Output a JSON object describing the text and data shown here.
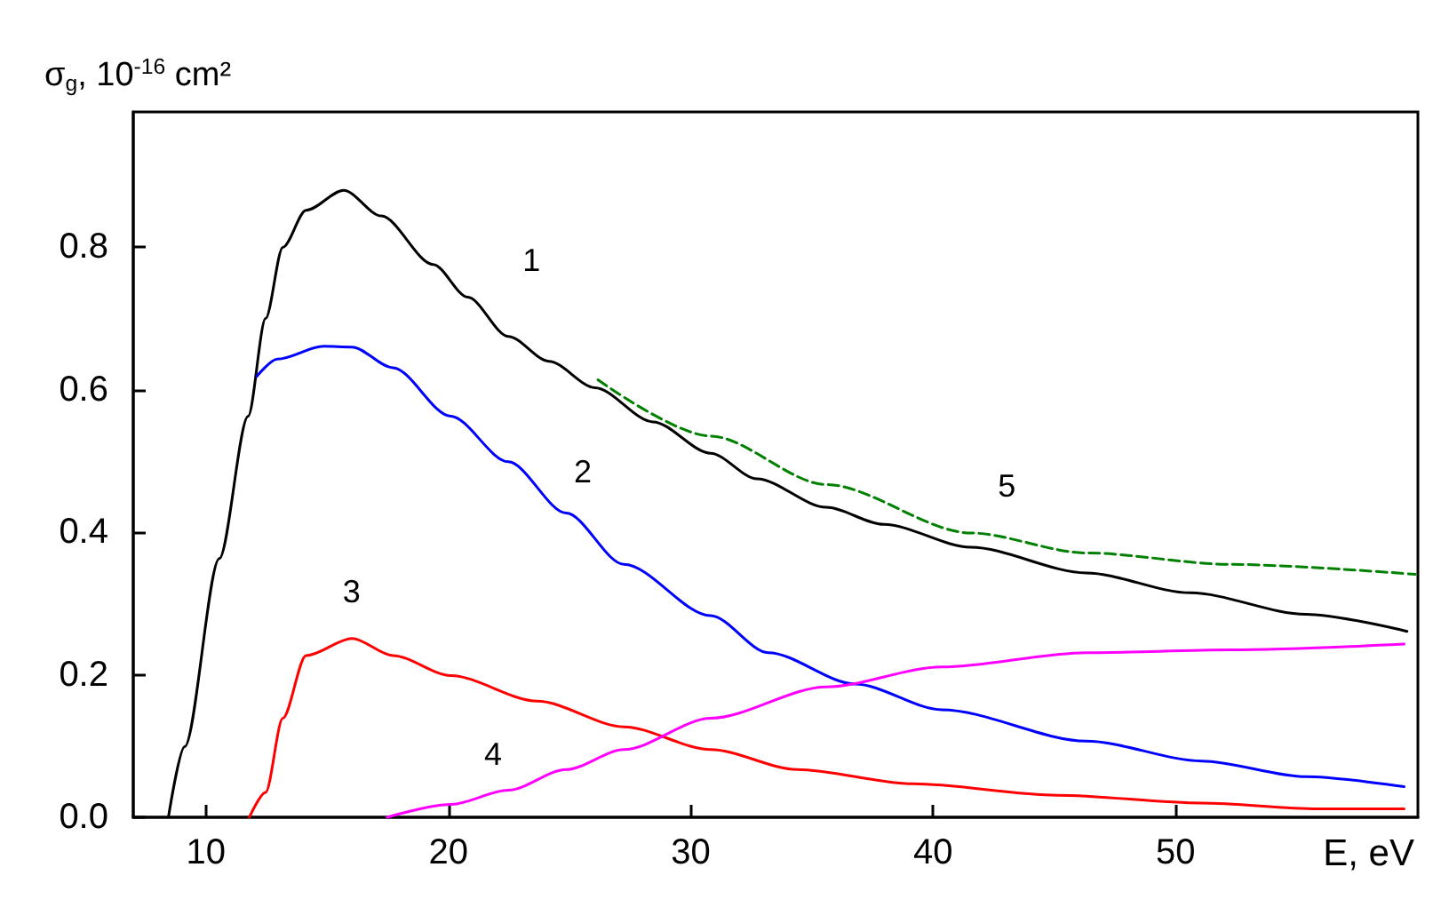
{
  "chart_data": {
    "type": "line",
    "xlabel": "E, eV",
    "ylabel": "σ$_{g}$, 10$^{-16}$ cm²",
    "xlim": [
      7,
      60
    ],
    "ylim": [
      0,
      0.99
    ],
    "xticks": [
      10,
      20,
      30,
      40,
      50
    ],
    "yticks": [
      {
        "value": 0,
        "label": "0.0"
      },
      0.2,
      0.4,
      0.6,
      0.8
    ],
    "grid": false,
    "legend": false,
    "marker": "none",
    "line_style": "solid",
    "series": [
      {
        "name": "1",
        "color": "#000000",
        "x": [
          8.45,
          9.12,
          10.55,
          11.74,
          12.46,
          13.17,
          14.13,
          15.68,
          17.23,
          19.37,
          20.8,
          22.47,
          24.15,
          26.05,
          28.44,
          30.82,
          32.73,
          35.59,
          37.97,
          41.55,
          46.32,
          50.61,
          55.38,
          59.55
        ],
        "values": [
          0,
          0.099,
          0.363,
          0.563,
          0.7,
          0.8,
          0.852,
          0.88,
          0.844,
          0.776,
          0.73,
          0.675,
          0.64,
          0.603,
          0.555,
          0.511,
          0.475,
          0.435,
          0.411,
          0.379,
          0.343,
          0.315,
          0.285,
          0.261
        ]
      },
      {
        "name": "2",
        "color": "#0000ff",
        "x": [
          12.1,
          12.94,
          14.85,
          16.03,
          17.71,
          20.09,
          22.47,
          24.86,
          27.24,
          30.82,
          33.2,
          36.78,
          40.36,
          46.32,
          51.09,
          55.38,
          59.43
        ],
        "values": [
          0.619,
          0.643,
          0.661,
          0.66,
          0.631,
          0.563,
          0.499,
          0.427,
          0.355,
          0.283,
          0.231,
          0.187,
          0.151,
          0.107,
          0.079,
          0.057,
          0.043
        ]
      },
      {
        "name": "3",
        "color": "#ff0000",
        "x": [
          11.79,
          12.46,
          13.17,
          14.13,
          16.03,
          17.71,
          20.09,
          23.67,
          27.24,
          30.82,
          34.4,
          39.17,
          45.13,
          51.09,
          55.86,
          59.43
        ],
        "values": [
          0,
          0.035,
          0.139,
          0.227,
          0.251,
          0.227,
          0.199,
          0.163,
          0.127,
          0.095,
          0.067,
          0.047,
          0.031,
          0.02,
          0.012,
          0.012
        ]
      },
      {
        "name": "4",
        "color": "#ff00ff",
        "x": [
          17.47,
          20.09,
          22.47,
          24.86,
          27.24,
          30.82,
          35.59,
          40.36,
          46.32,
          52.28,
          59.43
        ],
        "values": [
          0,
          0.018,
          0.038,
          0.067,
          0.095,
          0.139,
          0.183,
          0.211,
          0.231,
          0.235,
          0.243
        ]
      },
      {
        "name": "5",
        "color": "#008000",
        "line_style": "dashed",
        "x": [
          26.17,
          30.82,
          35.59,
          41.55,
          46.32,
          52.28,
          59.9
        ],
        "values": [
          0.614,
          0.535,
          0.467,
          0.399,
          0.371,
          0.355,
          0.341
        ]
      }
    ]
  }
}
